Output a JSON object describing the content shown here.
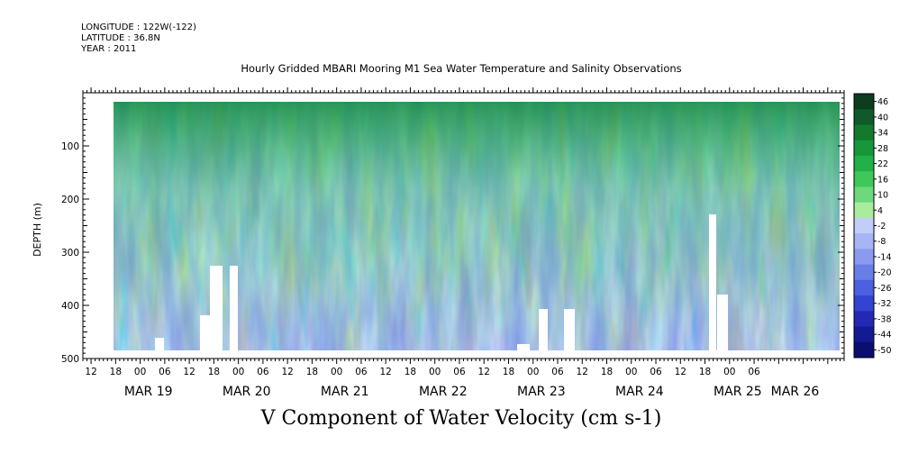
{
  "header": {
    "longitude": "LONGITUDE : 122W(-122)",
    "latitude": "LATITUDE : 36.8N",
    "year": "YEAR : 2011"
  },
  "chart_data": {
    "type": "heatmap",
    "title": "Hourly Gridded MBARI Mooring M1 Sea Water Temperature and Salinity Observations",
    "xlabel": "V Component of Water Velocity (cm s-1)",
    "ylabel": "DEPTH (m)",
    "y_range": [
      0,
      500
    ],
    "y_inverted": true,
    "y_ticks": [
      100,
      200,
      300,
      400,
      500
    ],
    "x_hour_ticks": [
      "12",
      "18",
      "00",
      "06",
      "12",
      "18",
      "00",
      "06",
      "12",
      "18",
      "00",
      "06",
      "12",
      "18",
      "00",
      "06",
      "12",
      "18",
      "00",
      "06",
      "12",
      "18",
      "00",
      "06",
      "12",
      "18",
      "00",
      "06"
    ],
    "x_day_labels": [
      "MAR 19",
      "MAR 20",
      "MAR 21",
      "MAR 22",
      "MAR 23",
      "MAR 24",
      "MAR 25",
      "MAR 26"
    ],
    "colorbar": {
      "labels": [
        "46",
        "40",
        "34",
        "28",
        "22",
        "16",
        "10",
        "4",
        "-2",
        "-8",
        "-14",
        "-20",
        "-26",
        "-32",
        "-38",
        "-44",
        "-50"
      ],
      "range": [
        -50,
        50
      ]
    }
  }
}
